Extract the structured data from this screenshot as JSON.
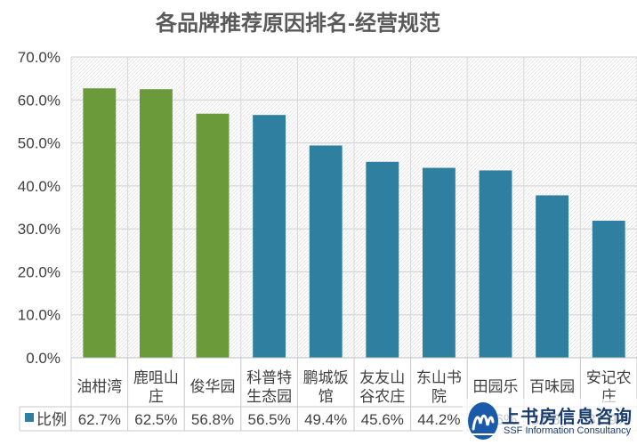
{
  "chart_data": {
    "type": "bar",
    "title": "各品牌推荐原因排名-经营规范",
    "categories": [
      "油柑湾",
      "鹿咀山庄",
      "俊华园",
      "科普特生态园",
      "鹏城饭馆",
      "友友山谷农庄",
      "东山书院",
      "田园乐",
      "百味园",
      "安记农庄"
    ],
    "category_lines": [
      [
        "油柑湾"
      ],
      [
        "鹿咀山",
        "庄"
      ],
      [
        "俊华园"
      ],
      [
        "科普特",
        "生态园"
      ],
      [
        "鹏城饭",
        "馆"
      ],
      [
        "友友山",
        "谷农庄"
      ],
      [
        "东山书",
        "院"
      ],
      [
        "田园乐"
      ],
      [
        "百味园"
      ],
      [
        "安记农",
        "庄"
      ]
    ],
    "series": [
      {
        "name": "比例",
        "values": [
          62.7,
          62.5,
          56.8,
          56.5,
          49.4,
          45.6,
          44.2,
          43.6,
          37.8,
          31.9
        ],
        "labels": [
          "62.7%",
          "62.5%",
          "56.8%",
          "56.5%",
          "49.4%",
          "45.6%",
          "44.2%",
          "43.6%",
          "37.8%",
          "31.9%"
        ]
      }
    ],
    "bar_colors": [
      "#6a9a3a",
      "#6a9a3a",
      "#6a9a3a",
      "#2f80a0",
      "#2f80a0",
      "#2f80a0",
      "#2f80a0",
      "#2f80a0",
      "#2f80a0",
      "#2f80a0"
    ],
    "legend_color": "#2f80a0",
    "yticks": [
      "0.0%",
      "10.0%",
      "20.0%",
      "30.0%",
      "40.0%",
      "50.0%",
      "60.0%",
      "70.0%"
    ],
    "ylim": [
      0,
      70
    ],
    "grid": true,
    "legend": "data-table"
  },
  "watermark": {
    "cn": "上书房信息咨询",
    "en": "SSF Information Consultancy"
  }
}
